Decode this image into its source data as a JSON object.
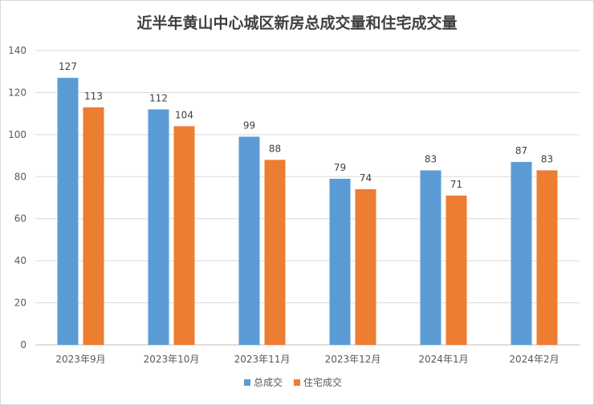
{
  "chart_data": {
    "type": "bar",
    "title": "近半年黄山中心城区新房总成交量和住宅成交量",
    "categories": [
      "2023年9月",
      "2023年10月",
      "2023年11月",
      "2023年12月",
      "2024年1月",
      "2024年2月"
    ],
    "series": [
      {
        "name": "总成交",
        "color": "#5b9bd5",
        "values": [
          127,
          112,
          99,
          79,
          83,
          87
        ]
      },
      {
        "name": "住宅成交",
        "color": "#ed7d31",
        "values": [
          113,
          104,
          88,
          74,
          71,
          83
        ]
      }
    ],
    "ylim": [
      0,
      140
    ],
    "yticks": [
      0,
      20,
      40,
      60,
      80,
      100,
      120,
      140
    ],
    "xlabel": "",
    "ylabel": "",
    "grid": true,
    "legend": "bottom"
  }
}
